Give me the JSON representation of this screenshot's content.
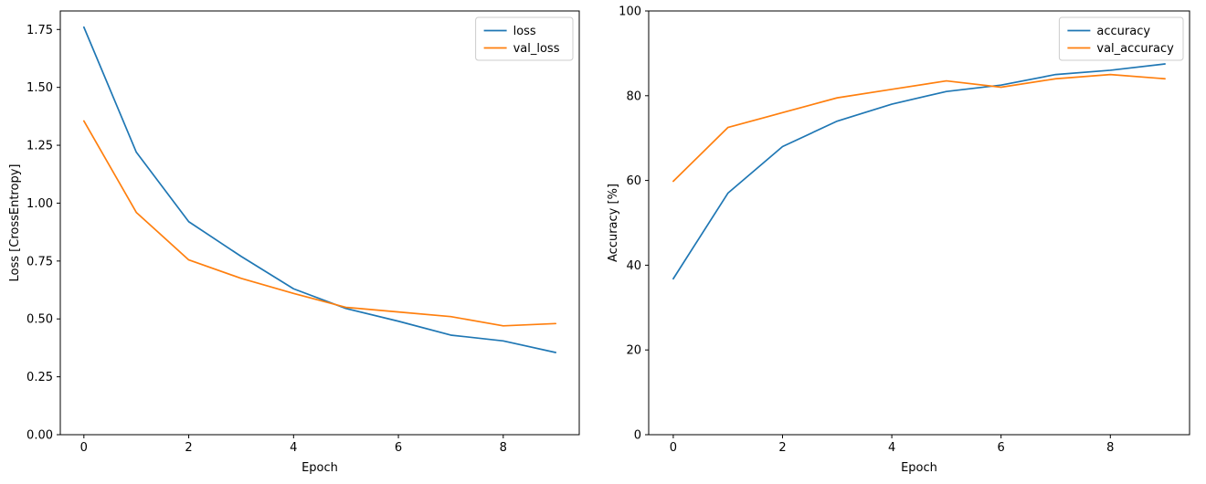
{
  "figure": {
    "background": "#ffffff"
  },
  "chart_data": [
    {
      "type": "line",
      "title": "",
      "xlabel": "Epoch",
      "ylabel": "Loss [CrossEntropy]",
      "x": [
        0,
        1,
        2,
        3,
        4,
        5,
        6,
        7,
        8,
        9
      ],
      "series": [
        {
          "name": "loss",
          "color": "#1f77b4",
          "values": [
            1.76,
            1.22,
            0.92,
            0.77,
            0.63,
            0.545,
            0.49,
            0.43,
            0.405,
            0.355
          ]
        },
        {
          "name": "val_loss",
          "color": "#ff7f0e",
          "values": [
            1.355,
            0.96,
            0.755,
            0.675,
            0.61,
            0.55,
            0.53,
            0.51,
            0.47,
            0.48
          ]
        }
      ],
      "xlim": [
        -0.45,
        9.45
      ],
      "ylim": [
        0,
        1.83
      ],
      "xticks": [
        0,
        2,
        4,
        6,
        8
      ],
      "xtick_labels": [
        "0",
        "2",
        "4",
        "6",
        "8"
      ],
      "yticks": [
        0,
        0.25,
        0.5,
        0.75,
        1.0,
        1.25,
        1.5,
        1.75
      ],
      "ytick_labels": [
        "0.00",
        "0.25",
        "0.50",
        "0.75",
        "1.00",
        "1.25",
        "1.50",
        "1.75"
      ],
      "grid": false,
      "legend_position": "upper right",
      "legend_labels": [
        "loss",
        "val_loss"
      ]
    },
    {
      "type": "line",
      "title": "",
      "xlabel": "Epoch",
      "ylabel": "Accuracy [%]",
      "x": [
        0,
        1,
        2,
        3,
        4,
        5,
        6,
        7,
        8,
        9
      ],
      "series": [
        {
          "name": "accuracy",
          "color": "#1f77b4",
          "values": [
            36.8,
            57,
            68,
            74,
            78,
            81,
            82.5,
            85,
            86,
            87.5
          ]
        },
        {
          "name": "val_accuracy",
          "color": "#ff7f0e",
          "values": [
            59.8,
            72.5,
            76,
            79.5,
            81.5,
            83.5,
            82,
            84,
            85,
            84
          ]
        }
      ],
      "xlim": [
        -0.45,
        9.45
      ],
      "ylim": [
        0,
        100
      ],
      "xticks": [
        0,
        2,
        4,
        6,
        8
      ],
      "xtick_labels": [
        "0",
        "2",
        "4",
        "6",
        "8"
      ],
      "yticks": [
        0,
        20,
        40,
        60,
        80,
        100
      ],
      "ytick_labels": [
        "0",
        "20",
        "40",
        "60",
        "80",
        "100"
      ],
      "grid": false,
      "legend_position": "upper right",
      "legend_labels": [
        "accuracy",
        "val_accuracy"
      ]
    }
  ]
}
